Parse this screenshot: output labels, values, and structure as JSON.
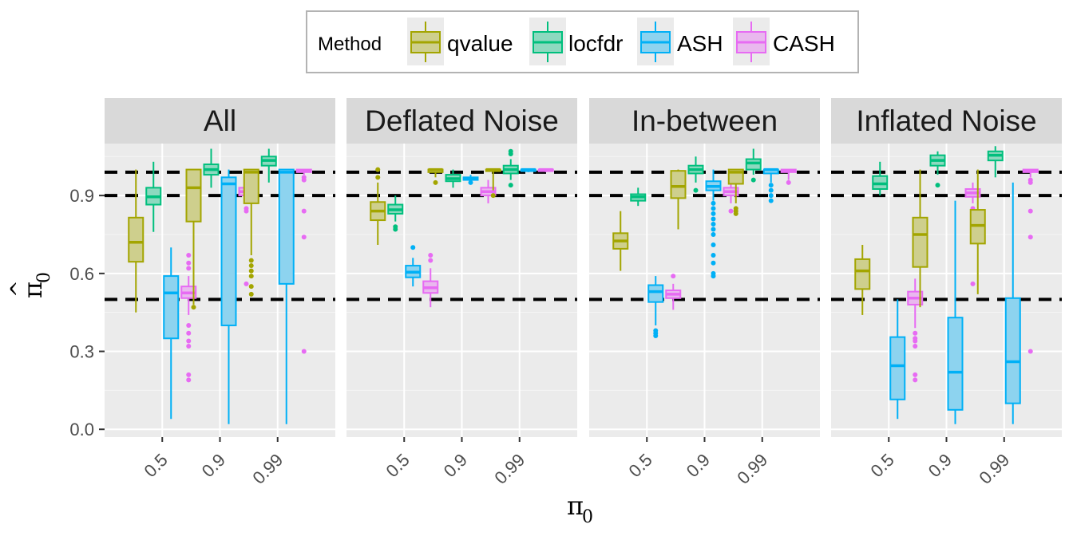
{
  "chart_data": {
    "type": "boxplot",
    "legend": {
      "title": "Method",
      "position": "top",
      "entries": [
        {
          "name": "qvalue",
          "color": "#A3A500"
        },
        {
          "name": "locfdr",
          "color": "#00BF7D"
        },
        {
          "name": "ASH",
          "color": "#00B0F6"
        },
        {
          "name": "CASH",
          "color": "#E76BF3"
        }
      ]
    },
    "x_title_main": "π",
    "x_title_sub": "0",
    "y_title_main": "π",
    "y_title_hat": "^",
    "y_title_sub": "0",
    "categories": [
      "0.5",
      "0.9",
      "0.99"
    ],
    "ylim": [
      -0.03,
      1.1
    ],
    "yticks": [
      0.0,
      0.3,
      0.6,
      0.9
    ],
    "ytick_labels": [
      "0.0",
      "0.3",
      "0.6",
      "0.9"
    ],
    "reference_lines": [
      0.5,
      0.9,
      0.99
    ],
    "grid": true,
    "panels": [
      {
        "title": "All",
        "groups": [
          [
            {
              "min": 0.45,
              "q1": 0.645,
              "med": 0.72,
              "q3": 0.815,
              "max": 1.0,
              "outliers": []
            },
            {
              "min": 0.76,
              "q1": 0.865,
              "med": 0.895,
              "q3": 0.93,
              "max": 1.03,
              "outliers": []
            },
            {
              "min": 0.04,
              "q1": 0.35,
              "med": 0.525,
              "q3": 0.59,
              "max": 0.7,
              "outliers": []
            },
            {
              "min": 0.44,
              "q1": 0.505,
              "med": 0.525,
              "q3": 0.55,
              "max": 0.59,
              "outliers": [
                0.67,
                0.64,
                0.62,
                0.4,
                0.37,
                0.34,
                0.32,
                0.21,
                0.19
              ]
            }
          ],
          [
            {
              "min": 0.48,
              "q1": 0.8,
              "med": 0.93,
              "q3": 1.0,
              "max": 1.0,
              "outliers": [
                0.47
              ]
            },
            {
              "min": 0.93,
              "q1": 0.98,
              "med": 1.0,
              "q3": 1.02,
              "max": 1.08,
              "outliers": []
            },
            {
              "min": 0.02,
              "q1": 0.4,
              "med": 0.945,
              "q3": 0.97,
              "max": 1.0,
              "outliers": []
            },
            {
              "min": 0.87,
              "q1": 0.9,
              "med": 0.915,
              "q3": 0.93,
              "max": 0.97,
              "outliers": [
                0.85,
                0.84,
                0.56
              ]
            }
          ],
          [
            {
              "min": 0.67,
              "q1": 0.87,
              "med": 0.99,
              "q3": 1.0,
              "max": 1.0,
              "outliers": [
                0.65,
                0.63,
                0.61,
                0.59,
                0.55,
                0.52
              ]
            },
            {
              "min": 0.95,
              "q1": 1.015,
              "med": 1.035,
              "q3": 1.05,
              "max": 1.08,
              "outliers": []
            },
            {
              "min": 0.02,
              "q1": 0.56,
              "med": 0.99,
              "q3": 1.0,
              "max": 1.0,
              "outliers": []
            },
            {
              "min": 0.98,
              "q1": 0.99,
              "med": 0.995,
              "q3": 1.0,
              "max": 1.0,
              "outliers": [
                0.97,
                0.96,
                0.84,
                0.74,
                0.3
              ]
            }
          ]
        ]
      },
      {
        "title": "Deflated Noise",
        "groups": [
          [
            {
              "min": 0.71,
              "q1": 0.805,
              "med": 0.84,
              "q3": 0.875,
              "max": 0.95,
              "outliers": [
                0.97,
                1.0
              ]
            },
            {
              "min": 0.8,
              "q1": 0.83,
              "med": 0.845,
              "q3": 0.865,
              "max": 0.9,
              "outliers": [
                0.78,
                0.77
              ]
            },
            {
              "min": 0.55,
              "q1": 0.585,
              "med": 0.605,
              "q3": 0.63,
              "max": 0.66,
              "outliers": [
                0.7
              ]
            },
            {
              "min": 0.47,
              "q1": 0.525,
              "med": 0.545,
              "q3": 0.57,
              "max": 0.62,
              "outliers": [
                0.65,
                0.67
              ]
            }
          ],
          [
            {
              "min": 0.97,
              "q1": 0.99,
              "med": 1.0,
              "q3": 1.0,
              "max": 1.0,
              "outliers": [
                0.95
              ]
            },
            {
              "min": 0.93,
              "q1": 0.955,
              "med": 0.965,
              "q3": 0.98,
              "max": 1.0,
              "outliers": []
            },
            {
              "min": 0.95,
              "q1": 0.96,
              "med": 0.965,
              "q3": 0.97,
              "max": 0.98,
              "outliers": [
                0.95
              ]
            },
            {
              "min": 0.87,
              "q1": 0.9,
              "med": 0.915,
              "q3": 0.93,
              "max": 0.96,
              "outliers": []
            }
          ],
          [
            {
              "min": 0.92,
              "q1": 0.995,
              "med": 1.0,
              "q3": 1.0,
              "max": 1.0,
              "outliers": [
                0.9
              ]
            },
            {
              "min": 0.96,
              "q1": 0.985,
              "med": 1.0,
              "q3": 1.015,
              "max": 1.04,
              "outliers": [
                1.06,
                1.07,
                0.94
              ]
            },
            {
              "min": 0.99,
              "q1": 0.995,
              "med": 1.0,
              "q3": 1.0,
              "max": 1.0,
              "outliers": []
            },
            {
              "min": 0.99,
              "q1": 0.995,
              "med": 1.0,
              "q3": 1.0,
              "max": 1.0,
              "outliers": []
            }
          ]
        ]
      },
      {
        "title": "In-between",
        "groups": [
          [
            {
              "min": 0.61,
              "q1": 0.695,
              "med": 0.725,
              "q3": 0.755,
              "max": 0.84,
              "outliers": []
            },
            {
              "min": 0.86,
              "q1": 0.88,
              "med": 0.895,
              "q3": 0.905,
              "max": 0.93,
              "outliers": []
            },
            {
              "min": 0.4,
              "q1": 0.49,
              "med": 0.53,
              "q3": 0.555,
              "max": 0.59,
              "outliers": [
                0.38,
                0.37,
                0.36
              ]
            },
            {
              "min": 0.46,
              "q1": 0.505,
              "med": 0.52,
              "q3": 0.535,
              "max": 0.56,
              "outliers": [
                0.59
              ]
            }
          ],
          [
            {
              "min": 0.77,
              "q1": 0.89,
              "med": 0.935,
              "q3": 0.995,
              "max": 1.0,
              "outliers": []
            },
            {
              "min": 0.95,
              "q1": 0.985,
              "med": 1.0,
              "q3": 1.015,
              "max": 1.05,
              "outliers": [
                0.92
              ]
            },
            {
              "min": 0.88,
              "q1": 0.92,
              "med": 0.935,
              "q3": 0.955,
              "max": 1.0,
              "outliers": [
                0.87,
                0.85,
                0.83,
                0.81,
                0.79,
                0.77,
                0.75,
                0.71,
                0.67,
                0.64,
                0.6,
                0.59
              ]
            },
            {
              "min": 0.87,
              "q1": 0.9,
              "med": 0.915,
              "q3": 0.93,
              "max": 0.95,
              "outliers": [
                0.84
              ]
            }
          ],
          [
            {
              "min": 0.87,
              "q1": 0.945,
              "med": 0.99,
              "q3": 1.0,
              "max": 1.0,
              "outliers": [
                0.85,
                0.84,
                0.83
              ]
            },
            {
              "min": 0.98,
              "q1": 1.0,
              "med": 1.025,
              "q3": 1.04,
              "max": 1.08,
              "outliers": [
                0.96
              ]
            },
            {
              "min": 0.95,
              "q1": 0.985,
              "med": 1.0,
              "q3": 1.0,
              "max": 1.0,
              "outliers": [
                0.94,
                0.92,
                0.9,
                0.88
              ]
            },
            {
              "min": 0.96,
              "q1": 0.99,
              "med": 0.995,
              "q3": 1.0,
              "max": 1.0,
              "outliers": [
                0.95
              ]
            }
          ]
        ]
      },
      {
        "title": "Inflated Noise",
        "groups": [
          [
            {
              "min": 0.44,
              "q1": 0.54,
              "med": 0.61,
              "q3": 0.655,
              "max": 0.71,
              "outliers": []
            },
            {
              "min": 0.9,
              "q1": 0.925,
              "med": 0.945,
              "q3": 0.975,
              "max": 1.03,
              "outliers": []
            },
            {
              "min": 0.04,
              "q1": 0.115,
              "med": 0.245,
              "q3": 0.355,
              "max": 0.5,
              "outliers": []
            },
            {
              "min": 0.39,
              "q1": 0.48,
              "med": 0.505,
              "q3": 0.53,
              "max": 0.58,
              "outliers": [
                0.37,
                0.35,
                0.34,
                0.32,
                0.21,
                0.19
              ]
            }
          ],
          [
            {
              "min": 0.47,
              "q1": 0.625,
              "med": 0.75,
              "q3": 0.815,
              "max": 1.0,
              "outliers": []
            },
            {
              "min": 0.98,
              "q1": 1.015,
              "med": 1.035,
              "q3": 1.055,
              "max": 1.07,
              "outliers": [
                0.94
              ]
            },
            {
              "min": 0.02,
              "q1": 0.075,
              "med": 0.22,
              "q3": 0.43,
              "max": 0.88,
              "outliers": []
            },
            {
              "min": 0.87,
              "q1": 0.895,
              "med": 0.91,
              "q3": 0.925,
              "max": 0.95,
              "outliers": [
                0.85,
                0.84,
                0.56
              ]
            }
          ],
          [
            {
              "min": 0.52,
              "q1": 0.715,
              "med": 0.785,
              "q3": 0.845,
              "max": 1.0,
              "outliers": []
            },
            {
              "min": 0.97,
              "q1": 1.035,
              "med": 1.055,
              "q3": 1.07,
              "max": 1.09,
              "outliers": []
            },
            {
              "min": 0.02,
              "q1": 0.1,
              "med": 0.26,
              "q3": 0.505,
              "max": 0.95,
              "outliers": []
            },
            {
              "min": 0.97,
              "q1": 0.99,
              "med": 0.995,
              "q3": 1.0,
              "max": 1.0,
              "outliers": [
                0.96,
                0.95,
                0.84,
                0.74,
                0.3
              ]
            }
          ]
        ]
      }
    ]
  }
}
